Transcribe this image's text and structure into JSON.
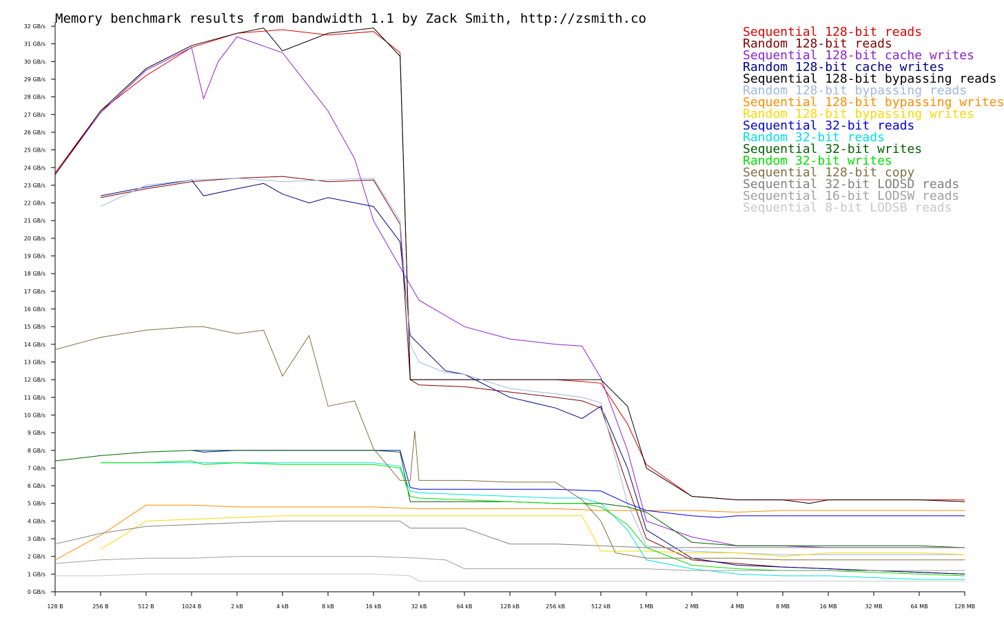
{
  "chart_data": {
    "type": "line",
    "title": "Memory benchmark results from bandwidth 1.1 by Zack Smith, http://zsmith.co",
    "x_scale": "log2",
    "x_ticks": [
      "128 B",
      "256 B",
      "512 B",
      "1024 B",
      "2 kB",
      "4 kB",
      "8 kB",
      "16 kB",
      "32 kB",
      "64 kB",
      "128 kB",
      "256 kB",
      "512 kB",
      "1 MB",
      "2 MB",
      "4 MB",
      "8 MB",
      "16 MB",
      "32 MB",
      "64 MB",
      "128 MB"
    ],
    "y_ticks": [
      "0 GB/s",
      "1 GB/s",
      "2 GB/s",
      "3 GB/s",
      "4 GB/s",
      "5 GB/s",
      "6 GB/s",
      "7 GB/s",
      "8 GB/s",
      "9 GB/s",
      "10 GB/s",
      "11 GB/s",
      "12 GB/s",
      "13 GB/s",
      "14 GB/s",
      "15 GB/s",
      "16 GB/s",
      "17 GB/s",
      "18 GB/s",
      "19 GB/s",
      "20 GB/s",
      "21 GB/s",
      "22 GB/s",
      "23 GB/s",
      "24 GB/s",
      "25 GB/s",
      "26 GB/s",
      "27 GB/s",
      "28 GB/s",
      "29 GB/s",
      "30 GB/s",
      "31 GB/s",
      "32 GB/s"
    ],
    "ylim": [
      0,
      32
    ],
    "legend_position": "top-right",
    "series": [
      {
        "name": "Sequential 128-bit reads",
        "color": "#e00000",
        "x": [
          "128 B",
          "256 B",
          "512 B",
          "1024 B",
          "2 kB",
          "4 kB",
          "8 kB",
          "16 kB",
          "24 kB",
          "28 kB",
          "32 kB",
          "64 kB",
          "128 kB",
          "256 kB",
          "384 kB",
          "512 kB",
          "768 kB",
          "1 MB",
          "2 MB",
          "4 MB",
          "8 MB",
          "16 MB",
          "32 MB",
          "64 MB",
          "128 MB"
        ],
        "values": [
          23.7,
          27.2,
          29.2,
          30.8,
          31.6,
          31.8,
          31.5,
          31.7,
          30.5,
          12.0,
          12.0,
          12.0,
          12.0,
          12.0,
          11.9,
          11.8,
          9.5,
          7.2,
          5.4,
          5.2,
          5.2,
          5.2,
          5.2,
          5.2,
          5.2
        ]
      },
      {
        "name": "Random 128-bit reads",
        "color": "#800000",
        "x": [
          "256 B",
          "512 B",
          "1024 B",
          "2 kB",
          "4 kB",
          "8 kB",
          "16 kB",
          "24 kB",
          "28 kB",
          "32 kB",
          "64 kB",
          "128 kB",
          "256 kB",
          "384 kB",
          "512 kB",
          "768 kB",
          "1 MB",
          "2 MB",
          "4 MB",
          "8 MB",
          "16 MB",
          "32 MB",
          "64 MB",
          "128 MB"
        ],
        "values": [
          22.3,
          22.8,
          23.2,
          23.4,
          23.5,
          23.2,
          23.3,
          20.8,
          12.0,
          11.7,
          11.6,
          11.3,
          11.0,
          10.8,
          10.4,
          6.0,
          3.0,
          1.8,
          1.6,
          1.4,
          1.3,
          1.2,
          1.1,
          1.0
        ]
      },
      {
        "name": "Sequential 128-bit cache writes",
        "color": "#9020d0",
        "x": [
          "128 B",
          "256 B",
          "512 B",
          "1024 B",
          "1.2 kB",
          "1.5 kB",
          "2 kB",
          "4 kB",
          "8 kB",
          "12 kB",
          "16 kB",
          "32 kB",
          "64 kB",
          "128 kB",
          "256 kB",
          "384 kB",
          "512 kB",
          "768 kB",
          "1 MB",
          "2 MB",
          "4 MB",
          "8 MB",
          "16 MB",
          "32 MB",
          "64 MB",
          "128 MB"
        ],
        "values": [
          23.6,
          27.1,
          29.5,
          30.8,
          27.9,
          30.0,
          31.4,
          30.5,
          27.2,
          24.5,
          21.0,
          16.5,
          15.0,
          14.3,
          14.0,
          13.9,
          12.1,
          8.0,
          4.0,
          3.1,
          2.6,
          2.6,
          2.5,
          2.5,
          2.5,
          2.5
        ]
      },
      {
        "name": "Random 128-bit cache writes",
        "color": "#000080",
        "x": [
          "256 B",
          "512 B",
          "1024 B",
          "1.2 kB",
          "2 kB",
          "3 kB",
          "4 kB",
          "6 kB",
          "8 kB",
          "16 kB",
          "24 kB",
          "28 kB",
          "32 kB",
          "48 kB",
          "64 kB",
          "128 kB",
          "256 kB",
          "384 kB",
          "512 kB",
          "768 kB",
          "1 MB",
          "2 MB",
          "4 MB",
          "8 MB",
          "16 MB",
          "32 MB",
          "64 MB",
          "128 MB"
        ],
        "values": [
          22.4,
          22.9,
          23.3,
          22.4,
          22.8,
          23.1,
          22.5,
          22.0,
          22.3,
          21.8,
          19.8,
          14.5,
          14.0,
          12.5,
          12.3,
          11.0,
          10.4,
          9.8,
          10.5,
          7.0,
          3.5,
          1.9,
          1.5,
          1.4,
          1.3,
          1.2,
          1.1,
          1.0
        ]
      },
      {
        "name": "Sequential 128-bit bypassing reads",
        "color": "#000000",
        "x": [
          "128 B",
          "256 B",
          "512 B",
          "1024 B",
          "2 kB",
          "3 kB",
          "4 kB",
          "8 kB",
          "16 kB",
          "24 kB",
          "28 kB",
          "32 kB",
          "64 kB",
          "128 kB",
          "256 kB",
          "512 kB",
          "768 kB",
          "1 MB",
          "2 MB",
          "4 MB",
          "8 MB",
          "12 MB",
          "16 MB",
          "32 MB",
          "64 MB",
          "128 MB"
        ],
        "values": [
          23.6,
          27.2,
          29.6,
          30.9,
          31.6,
          31.9,
          30.6,
          31.6,
          31.9,
          30.3,
          12.0,
          12.0,
          12.0,
          12.0,
          12.0,
          12.0,
          10.5,
          7.0,
          5.4,
          5.2,
          5.2,
          5.0,
          5.2,
          5.2,
          5.2,
          5.1
        ]
      },
      {
        "name": "Random 128-bit bypassing reads",
        "color": "#a0b8e0",
        "x": [
          "256 B",
          "512 B",
          "1024 B",
          "2 kB",
          "4 kB",
          "8 kB",
          "16 kB",
          "24 kB",
          "28 kB",
          "32 kB",
          "48 kB",
          "64 kB",
          "128 kB",
          "256 kB",
          "384 kB",
          "512 kB",
          "768 kB",
          "1 MB",
          "2 MB",
          "4 MB",
          "8 MB",
          "16 MB",
          "32 MB",
          "64 MB",
          "128 MB"
        ],
        "values": [
          21.8,
          23.0,
          23.3,
          23.4,
          23.2,
          23.3,
          23.4,
          21.0,
          14.0,
          13.0,
          12.4,
          12.3,
          11.5,
          11.2,
          11.0,
          10.7,
          5.0,
          2.6,
          2.3,
          2.2,
          2.1,
          2.1,
          2.1,
          2.1,
          2.1
        ]
      },
      {
        "name": "Sequential 128-bit bypassing writes",
        "color": "#ff8c00",
        "x": [
          "128 B",
          "256 B",
          "512 B",
          "1024 B",
          "2 kB",
          "4 kB",
          "8 kB",
          "16 kB",
          "32 kB",
          "64 kB",
          "128 kB",
          "256 kB",
          "512 kB",
          "1 MB",
          "2 MB",
          "4 MB",
          "8 MB",
          "16 MB",
          "32 MB",
          "64 MB",
          "128 MB"
        ],
        "values": [
          1.8,
          3.2,
          4.9,
          4.9,
          4.8,
          4.8,
          4.8,
          4.8,
          4.7,
          4.7,
          4.7,
          4.7,
          4.6,
          4.6,
          4.6,
          4.5,
          4.6,
          4.6,
          4.6,
          4.6,
          4.6
        ]
      },
      {
        "name": "Random 128-bit bypassing writes",
        "color": "#ffd800",
        "x": [
          "256 B",
          "512 B",
          "1024 B",
          "2 kB",
          "4 kB",
          "8 kB",
          "16 kB",
          "32 kB",
          "64 kB",
          "128 kB",
          "256 kB",
          "384 kB",
          "512 kB",
          "1 MB",
          "2 MB",
          "4 MB",
          "8 MB",
          "16 MB",
          "32 MB",
          "64 MB",
          "128 MB"
        ],
        "values": [
          2.4,
          4.0,
          4.1,
          4.2,
          4.3,
          4.3,
          4.3,
          4.3,
          4.3,
          4.3,
          4.3,
          4.3,
          2.3,
          2.3,
          2.2,
          2.2,
          2.0,
          2.2,
          2.2,
          2.2,
          2.1
        ]
      },
      {
        "name": "Sequential 32-bit reads",
        "color": "#0000e0",
        "x": [
          "1024 B",
          "1.2 kB",
          "2 kB",
          "4 kB",
          "8 kB",
          "16 kB",
          "24 kB",
          "28 kB",
          "32 kB",
          "64 kB",
          "128 kB",
          "256 kB",
          "512 kB",
          "768 kB",
          "1 MB",
          "2 MB",
          "3 MB",
          "4 MB",
          "8 MB",
          "16 MB",
          "32 MB",
          "64 MB",
          "128 MB"
        ],
        "values": [
          8.0,
          7.9,
          8.0,
          8.0,
          8.0,
          8.0,
          8.0,
          5.9,
          5.8,
          5.8,
          5.8,
          5.8,
          5.7,
          5.0,
          4.6,
          4.3,
          4.2,
          4.3,
          4.3,
          4.3,
          4.3,
          4.3,
          4.3
        ]
      },
      {
        "name": "Random 32-bit reads",
        "color": "#00e0e0",
        "x": [
          "256 B",
          "512 B",
          "1024 B",
          "2 kB",
          "4 kB",
          "8 kB",
          "16 kB",
          "24 kB",
          "28 kB",
          "32 kB",
          "64 kB",
          "128 kB",
          "256 kB",
          "384 kB",
          "512 kB",
          "768 kB",
          "1 MB",
          "2 MB",
          "4 MB",
          "8 MB",
          "16 MB",
          "32 MB",
          "64 MB",
          "128 MB"
        ],
        "values": [
          7.3,
          7.3,
          7.3,
          7.3,
          7.3,
          7.3,
          7.3,
          7.1,
          5.7,
          5.6,
          5.5,
          5.4,
          5.3,
          5.3,
          5.0,
          3.5,
          1.8,
          1.3,
          1.0,
          0.9,
          0.9,
          0.8,
          0.7,
          0.7
        ]
      },
      {
        "name": "Sequential 32-bit writes",
        "color": "#006000",
        "x": [
          "128 B",
          "256 B",
          "512 B",
          "1024 B",
          "2 kB",
          "4 kB",
          "8 kB",
          "16 kB",
          "24 kB",
          "28 kB",
          "32 kB",
          "64 kB",
          "128 kB",
          "256 kB",
          "512 kB",
          "768 kB",
          "1 MB",
          "2 MB",
          "4 MB",
          "8 MB",
          "16 MB",
          "32 MB",
          "64 MB",
          "128 MB"
        ],
        "values": [
          7.4,
          7.7,
          7.9,
          8.0,
          8.0,
          8.0,
          8.0,
          8.0,
          7.9,
          5.1,
          5.1,
          5.1,
          5.1,
          5.0,
          5.0,
          4.8,
          4.5,
          2.8,
          2.6,
          2.6,
          2.6,
          2.6,
          2.6,
          2.5
        ]
      },
      {
        "name": "Random 32-bit writes",
        "color": "#00e000",
        "x": [
          "256 B",
          "512 B",
          "1024 B",
          "1.2 kB",
          "2 kB",
          "4 kB",
          "8 kB",
          "16 kB",
          "24 kB",
          "28 kB",
          "32 kB",
          "64 kB",
          "128 kB",
          "256 kB",
          "384 kB",
          "512 kB",
          "768 kB",
          "1 MB",
          "2 MB",
          "4 MB",
          "8 MB",
          "16 MB",
          "32 MB",
          "64 MB",
          "128 MB"
        ],
        "values": [
          7.3,
          7.3,
          7.4,
          7.2,
          7.3,
          7.2,
          7.2,
          7.2,
          7.0,
          5.4,
          5.3,
          5.2,
          5.1,
          5.0,
          5.0,
          4.8,
          3.8,
          2.5,
          1.5,
          1.3,
          1.2,
          1.2,
          1.1,
          1.0,
          0.9
        ]
      },
      {
        "name": "Sequential 128-bit copy",
        "color": "#807040",
        "x": [
          "128 B",
          "256 B",
          "512 B",
          "1024 B",
          "1.2 kB",
          "2 kB",
          "3 kB",
          "4 kB",
          "6 kB",
          "8 kB",
          "12 kB",
          "16 kB",
          "24 kB",
          "26 kB",
          "28 kB",
          "30 kB",
          "32 kB",
          "64 kB",
          "128 kB",
          "256 kB",
          "384 kB",
          "512 kB",
          "640 kB",
          "1 MB",
          "2 MB",
          "4 MB",
          "8 MB",
          "16 MB",
          "32 MB",
          "64 MB",
          "128 MB"
        ],
        "values": [
          13.7,
          14.4,
          14.8,
          15.0,
          15.0,
          14.6,
          14.8,
          12.2,
          14.5,
          10.5,
          10.8,
          8.1,
          6.3,
          6.3,
          6.3,
          9.1,
          6.3,
          6.3,
          6.2,
          6.2,
          5.2,
          4.0,
          2.2,
          1.9,
          1.9,
          1.9,
          1.8,
          1.8,
          1.8,
          1.8,
          1.8
        ]
      },
      {
        "name": "Sequential 32-bit LODSD reads",
        "color": "#808080",
        "x": [
          "128 B",
          "256 B",
          "512 B",
          "1024 B",
          "2 kB",
          "4 kB",
          "8 kB",
          "16 kB",
          "24 kB",
          "28 kB",
          "32 kB",
          "64 kB",
          "128 kB",
          "256 kB",
          "512 kB",
          "1 MB",
          "2 MB",
          "4 MB",
          "8 MB",
          "16 MB",
          "32 MB",
          "64 MB",
          "128 MB"
        ],
        "values": [
          2.7,
          3.3,
          3.7,
          3.8,
          3.9,
          4.0,
          4.0,
          4.0,
          4.0,
          3.6,
          3.6,
          3.6,
          2.7,
          2.7,
          2.6,
          2.5,
          2.5,
          2.5,
          2.5,
          2.5,
          2.5,
          2.5,
          2.5
        ]
      },
      {
        "name": "Sequential 16-bit LODSW reads",
        "color": "#a0a0a0",
        "x": [
          "128 B",
          "256 B",
          "512 B",
          "1024 B",
          "2 kB",
          "4 kB",
          "8 kB",
          "16 kB",
          "32 kB",
          "48 kB",
          "64 kB",
          "128 kB",
          "256 kB",
          "512 kB",
          "1 MB",
          "2 MB",
          "4 MB",
          "8 MB",
          "16 MB",
          "32 MB",
          "64 MB",
          "128 MB"
        ],
        "values": [
          1.6,
          1.8,
          1.9,
          1.9,
          2.0,
          2.0,
          2.0,
          2.0,
          1.9,
          1.8,
          1.3,
          1.3,
          1.3,
          1.3,
          1.3,
          1.2,
          1.2,
          1.2,
          1.2,
          1.2,
          1.2,
          1.2
        ]
      },
      {
        "name": "Sequential 8-bit LODSB reads",
        "color": "#c8c8c8",
        "x": [
          "128 B",
          "256 B",
          "512 B",
          "1024 B",
          "2 kB",
          "4 kB",
          "8 kB",
          "16 kB",
          "28 kB",
          "32 kB",
          "64 kB",
          "128 kB",
          "256 kB",
          "512 kB",
          "1 MB",
          "2 MB",
          "4 MB",
          "8 MB",
          "16 MB",
          "32 MB",
          "64 MB",
          "128 MB"
        ],
        "values": [
          0.9,
          0.9,
          1.0,
          1.0,
          1.0,
          1.0,
          1.0,
          1.0,
          0.9,
          0.6,
          0.6,
          0.6,
          0.6,
          0.6,
          0.6,
          0.6,
          0.6,
          0.6,
          0.6,
          0.6,
          0.6,
          0.6
        ]
      }
    ]
  }
}
